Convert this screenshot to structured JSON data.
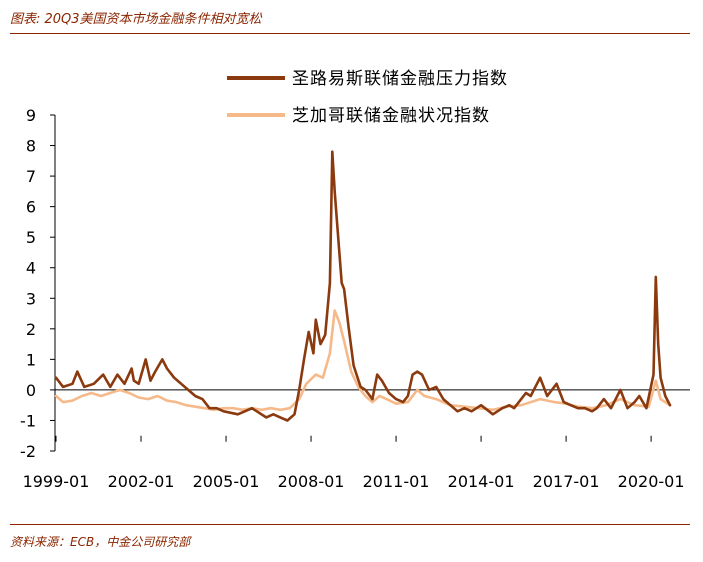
{
  "title": "图表: 20Q3美国资本市场金融条件相对宽松",
  "source": "资料来源：ECB，中金公司研究部",
  "colors": {
    "accent": "#8B2500",
    "series1": "#8B3A0F",
    "series2": "#F5B98A",
    "axis": "#000000"
  },
  "chart_data": {
    "type": "line",
    "x_start": "1999-01",
    "x_end": "2020-09",
    "x_ticks": [
      "1999-01",
      "2002-01",
      "2005-01",
      "2008-01",
      "2011-01",
      "2014-01",
      "2017-01",
      "2020-01"
    ],
    "y_ticks": [
      "9",
      "8",
      "7",
      "6",
      "5",
      "4",
      "3",
      "2",
      "1",
      "0",
      "-1",
      "-2"
    ],
    "ylim": [
      -2,
      9
    ],
    "grid": false,
    "legend_position": "top-right",
    "series": [
      {
        "name": "圣路易斯联储金融压力指数",
        "points": [
          [
            "1999-01",
            0.4
          ],
          [
            "1999-04",
            0.1
          ],
          [
            "1999-08",
            0.2
          ],
          [
            "1999-10",
            0.6
          ],
          [
            "2000-01",
            0.1
          ],
          [
            "2000-05",
            0.2
          ],
          [
            "2000-09",
            0.5
          ],
          [
            "2000-12",
            0.1
          ],
          [
            "2001-03",
            0.5
          ],
          [
            "2001-06",
            0.2
          ],
          [
            "2001-09",
            0.7
          ],
          [
            "2001-10",
            0.3
          ],
          [
            "2001-12",
            0.2
          ],
          [
            "2002-03",
            1.0
          ],
          [
            "2002-05",
            0.3
          ],
          [
            "2002-07",
            0.6
          ],
          [
            "2002-10",
            1.0
          ],
          [
            "2002-12",
            0.7
          ],
          [
            "2003-03",
            0.4
          ],
          [
            "2003-06",
            0.2
          ],
          [
            "2003-09",
            0.0
          ],
          [
            "2003-12",
            -0.2
          ],
          [
            "2004-03",
            -0.3
          ],
          [
            "2004-06",
            -0.6
          ],
          [
            "2004-09",
            -0.6
          ],
          [
            "2004-12",
            -0.7
          ],
          [
            "2005-03",
            -0.75
          ],
          [
            "2005-06",
            -0.8
          ],
          [
            "2005-09",
            -0.7
          ],
          [
            "2005-12",
            -0.6
          ],
          [
            "2006-03",
            -0.75
          ],
          [
            "2006-06",
            -0.9
          ],
          [
            "2006-09",
            -0.8
          ],
          [
            "2006-12",
            -0.9
          ],
          [
            "2007-03",
            -1.0
          ],
          [
            "2007-06",
            -0.8
          ],
          [
            "2007-08",
            0.0
          ],
          [
            "2007-10",
            1.0
          ],
          [
            "2007-12",
            1.9
          ],
          [
            "2008-02",
            1.2
          ],
          [
            "2008-03",
            2.3
          ],
          [
            "2008-05",
            1.5
          ],
          [
            "2008-07",
            1.8
          ],
          [
            "2008-09",
            3.5
          ],
          [
            "2008-10",
            7.8
          ],
          [
            "2008-11",
            6.5
          ],
          [
            "2008-12",
            5.5
          ],
          [
            "2009-02",
            3.5
          ],
          [
            "2009-03",
            3.3
          ],
          [
            "2009-05",
            2.0
          ],
          [
            "2009-07",
            0.8
          ],
          [
            "2009-10",
            0.1
          ],
          [
            "2009-12",
            0.0
          ],
          [
            "2010-03",
            -0.3
          ],
          [
            "2010-05",
            0.5
          ],
          [
            "2010-07",
            0.3
          ],
          [
            "2010-10",
            -0.1
          ],
          [
            "2011-01",
            -0.3
          ],
          [
            "2011-04",
            -0.4
          ],
          [
            "2011-06",
            -0.2
          ],
          [
            "2011-08",
            0.5
          ],
          [
            "2011-10",
            0.6
          ],
          [
            "2011-12",
            0.5
          ],
          [
            "2012-03",
            0.0
          ],
          [
            "2012-06",
            0.1
          ],
          [
            "2012-09",
            -0.3
          ],
          [
            "2012-12",
            -0.5
          ],
          [
            "2013-03",
            -0.7
          ],
          [
            "2013-06",
            -0.6
          ],
          [
            "2013-09",
            -0.7
          ],
          [
            "2014-01",
            -0.5
          ],
          [
            "2014-06",
            -0.8
          ],
          [
            "2014-10",
            -0.6
          ],
          [
            "2015-01",
            -0.5
          ],
          [
            "2015-03",
            -0.6
          ],
          [
            "2015-08",
            -0.1
          ],
          [
            "2015-10",
            -0.2
          ],
          [
            "2016-02",
            0.4
          ],
          [
            "2016-05",
            -0.2
          ],
          [
            "2016-07",
            0.0
          ],
          [
            "2016-09",
            0.2
          ],
          [
            "2016-12",
            -0.4
          ],
          [
            "2017-03",
            -0.5
          ],
          [
            "2017-06",
            -0.6
          ],
          [
            "2017-09",
            -0.6
          ],
          [
            "2017-12",
            -0.7
          ],
          [
            "2018-02",
            -0.6
          ],
          [
            "2018-05",
            -0.3
          ],
          [
            "2018-08",
            -0.6
          ],
          [
            "2018-12",
            0.0
          ],
          [
            "2019-01",
            -0.2
          ],
          [
            "2019-03",
            -0.6
          ],
          [
            "2019-06",
            -0.4
          ],
          [
            "2019-08",
            -0.2
          ],
          [
            "2019-11",
            -0.6
          ],
          [
            "2020-02",
            0.5
          ],
          [
            "2020-03",
            3.7
          ],
          [
            "2020-04",
            1.5
          ],
          [
            "2020-05",
            0.4
          ],
          [
            "2020-07",
            -0.2
          ],
          [
            "2020-09",
            -0.5
          ]
        ]
      },
      {
        "name": "芝加哥联储金融状况指数",
        "points": [
          [
            "1999-01",
            -0.2
          ],
          [
            "1999-04",
            -0.4
          ],
          [
            "1999-08",
            -0.35
          ],
          [
            "1999-12",
            -0.2
          ],
          [
            "2000-04",
            -0.1
          ],
          [
            "2000-08",
            -0.2
          ],
          [
            "2000-12",
            -0.1
          ],
          [
            "2001-04",
            0.0
          ],
          [
            "2001-08",
            -0.1
          ],
          [
            "2001-12",
            -0.25
          ],
          [
            "2002-04",
            -0.3
          ],
          [
            "2002-08",
            -0.2
          ],
          [
            "2002-12",
            -0.35
          ],
          [
            "2003-04",
            -0.4
          ],
          [
            "2003-08",
            -0.5
          ],
          [
            "2003-12",
            -0.55
          ],
          [
            "2004-04",
            -0.6
          ],
          [
            "2004-08",
            -0.65
          ],
          [
            "2004-12",
            -0.6
          ],
          [
            "2005-04",
            -0.6
          ],
          [
            "2005-08",
            -0.65
          ],
          [
            "2005-12",
            -0.6
          ],
          [
            "2006-04",
            -0.65
          ],
          [
            "2006-08",
            -0.6
          ],
          [
            "2006-12",
            -0.65
          ],
          [
            "2007-04",
            -0.6
          ],
          [
            "2007-08",
            -0.3
          ],
          [
            "2007-11",
            0.2
          ],
          [
            "2008-03",
            0.5
          ],
          [
            "2008-06",
            0.4
          ],
          [
            "2008-09",
            1.2
          ],
          [
            "2008-11",
            2.6
          ],
          [
            "2009-01",
            2.2
          ],
          [
            "2009-03",
            1.6
          ],
          [
            "2009-06",
            0.6
          ],
          [
            "2009-09",
            0.1
          ],
          [
            "2009-12",
            -0.2
          ],
          [
            "2010-03",
            -0.4
          ],
          [
            "2010-06",
            -0.2
          ],
          [
            "2010-09",
            -0.3
          ],
          [
            "2011-01",
            -0.45
          ],
          [
            "2011-06",
            -0.4
          ],
          [
            "2011-10",
            0.0
          ],
          [
            "2012-01",
            -0.2
          ],
          [
            "2012-06",
            -0.3
          ],
          [
            "2012-12",
            -0.5
          ],
          [
            "2013-06",
            -0.55
          ],
          [
            "2013-12",
            -0.6
          ],
          [
            "2014-06",
            -0.65
          ],
          [
            "2014-12",
            -0.55
          ],
          [
            "2015-06",
            -0.5
          ],
          [
            "2016-02",
            -0.3
          ],
          [
            "2016-08",
            -0.4
          ],
          [
            "2017-01",
            -0.45
          ],
          [
            "2017-06",
            -0.55
          ],
          [
            "2017-12",
            -0.6
          ],
          [
            "2018-06",
            -0.5
          ],
          [
            "2018-12",
            -0.3
          ],
          [
            "2019-06",
            -0.5
          ],
          [
            "2019-12",
            -0.55
          ],
          [
            "2020-03",
            0.3
          ],
          [
            "2020-05",
            -0.3
          ],
          [
            "2020-09",
            -0.5
          ]
        ]
      }
    ]
  }
}
